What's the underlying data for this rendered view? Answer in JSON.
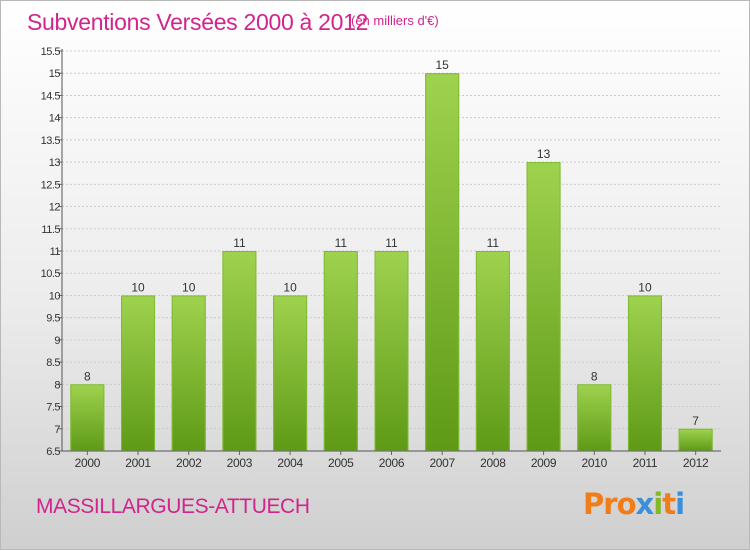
{
  "header": {
    "title": "Subventions Versées 2000 à 2012",
    "unit_note": "(en milliers d'€)"
  },
  "footer": {
    "place": "MASSILLARGUES-ATTUECH",
    "logo_text": "Proxiti",
    "logo_colors": [
      "#f07d1a",
      "#f07d1a",
      "#f07d1a",
      "#3a8fd8",
      "#84b828",
      "#f07d1a",
      "#3a8fd8"
    ]
  },
  "colors": {
    "title": "#d2248c",
    "bar_top": "#9fd24f",
    "bar_bottom": "#5e9a16",
    "gridline": "#cccccc",
    "text": "#333333"
  },
  "chart_data": {
    "type": "bar",
    "title": "Subventions Versées 2000 à 2012",
    "subtitle": "(en milliers d'€)",
    "xlabel": "",
    "ylabel": "",
    "categories": [
      "2000",
      "2001",
      "2002",
      "2003",
      "2004",
      "2005",
      "2006",
      "2007",
      "2008",
      "2009",
      "2010",
      "2011",
      "2012"
    ],
    "values": [
      8,
      10,
      10,
      11,
      10,
      11,
      11,
      15,
      11,
      13,
      8,
      10,
      7
    ],
    "data_labels": [
      "8",
      "10",
      "10",
      "11",
      "10",
      "11",
      "11",
      "15",
      "11",
      "13",
      "8",
      "10",
      "7"
    ],
    "ylim": [
      6.5,
      15.5
    ],
    "yticks": [
      6.5,
      7,
      7.5,
      8,
      8.5,
      9,
      9.5,
      10,
      10.5,
      11,
      11.5,
      12,
      12.5,
      13,
      13.5,
      14,
      14.5,
      15,
      15.5
    ],
    "ytick_labels": [
      "6.5",
      "7",
      "7.5",
      "8",
      "8.5",
      "9",
      "9.5",
      "10",
      "10.5",
      "11",
      "11.5",
      "12",
      "12.5",
      "13",
      "13.5",
      "14",
      "14.5",
      "15",
      "15.5"
    ],
    "grid": true,
    "legend": "none"
  }
}
